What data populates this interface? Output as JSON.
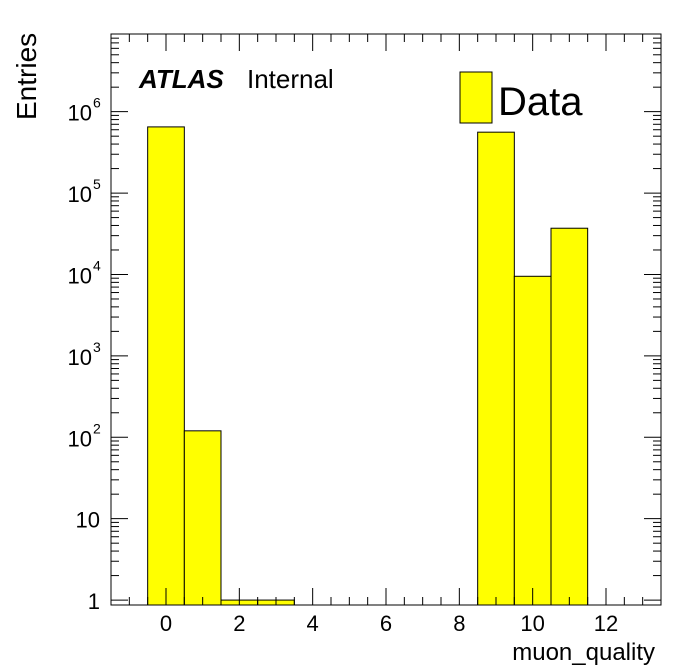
{
  "chart_data": {
    "type": "bar",
    "histogram": true,
    "bin_width": 1,
    "x": [
      0,
      1,
      2,
      3,
      9,
      10,
      11
    ],
    "values": [
      650000,
      120,
      1,
      1,
      560000,
      9500,
      37000
    ],
    "xlabel": "muon_quality",
    "ylabel": "Entries",
    "xlim": [
      -1.5,
      13.5
    ],
    "ylim": [
      0.87,
      9000000
    ],
    "log_y": true,
    "x_ticks": [
      0,
      2,
      4,
      6,
      8,
      10,
      12
    ],
    "x_tick_labels": [
      "0",
      "2",
      "4",
      "6",
      "8",
      "10",
      "12"
    ],
    "y_ticks": [
      1,
      10,
      100,
      1000,
      10000,
      100000,
      1000000
    ],
    "y_tick_labels": [
      {
        "base": "1",
        "exp": ""
      },
      {
        "base": "10",
        "exp": ""
      },
      {
        "base": "10",
        "exp": "2"
      },
      {
        "base": "10",
        "exp": "3"
      },
      {
        "base": "10",
        "exp": "4"
      },
      {
        "base": "10",
        "exp": "5"
      },
      {
        "base": "10",
        "exp": "6"
      }
    ],
    "legend": {
      "label": "Data",
      "placement": "top-right"
    },
    "annotation": {
      "bold": "ATLAS",
      "normal": "Internal"
    },
    "fill_color": "#ffff00",
    "line_color": "#000000",
    "grid": false
  }
}
